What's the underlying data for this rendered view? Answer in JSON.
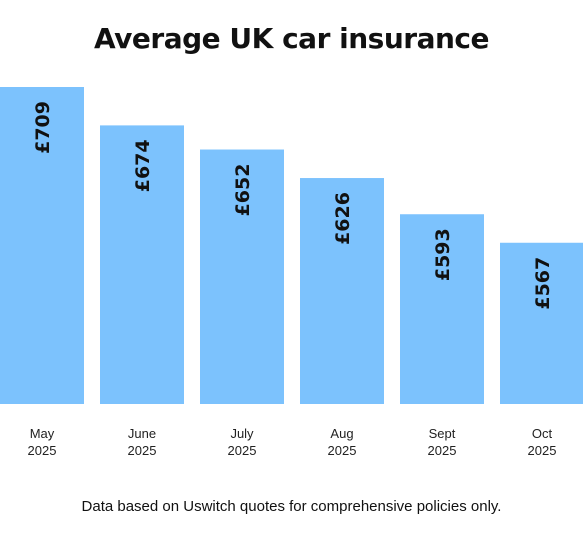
{
  "chart_data": {
    "type": "bar",
    "title": "Average UK car insurance",
    "xlabel": "",
    "ylabel": "",
    "categories": [
      {
        "month": "May",
        "year": "2025"
      },
      {
        "month": "June",
        "year": "2025"
      },
      {
        "month": "July",
        "year": "2025"
      },
      {
        "month": "Aug",
        "year": "2025"
      },
      {
        "month": "Sept",
        "year": "2025"
      },
      {
        "month": "Oct",
        "year": "2025"
      }
    ],
    "values": [
      709,
      674,
      652,
      626,
      593,
      567
    ],
    "value_labels": [
      "£709",
      "£674",
      "£652",
      "£626",
      "£593",
      "£567"
    ],
    "ylim": [
      0,
      709
    ],
    "grid": false,
    "legend": "none",
    "bar_color": "#7cc2fd"
  },
  "footnote": "Data based on Uswitch quotes for comprehensive policies only."
}
